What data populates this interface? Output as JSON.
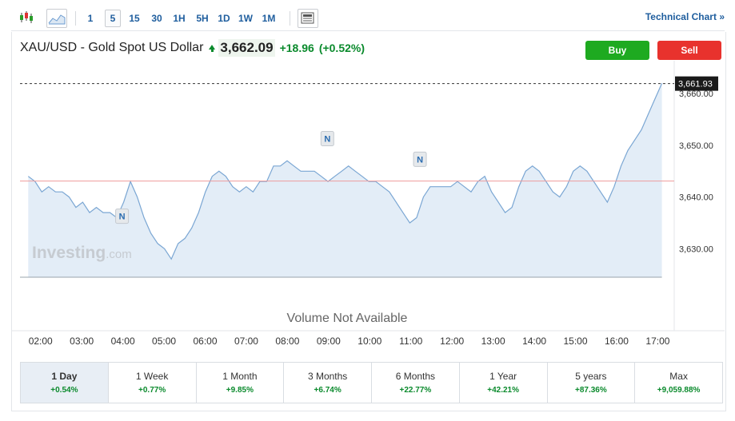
{
  "toolbar": {
    "intervals": [
      "1",
      "5",
      "15",
      "30",
      "1H",
      "5H",
      "1D",
      "1W",
      "1M"
    ],
    "active_interval": "5",
    "technical_chart_label": "Technical Chart",
    "technical_chart_suffix": "»"
  },
  "header": {
    "title": "XAU/USD - Gold Spot US Dollar",
    "price": "3,662.09",
    "change": "+18.96",
    "change_pct": "(+0.52%)",
    "up_color": "#0a8a2c"
  },
  "actions": {
    "buy_label": "Buy",
    "sell_label": "Sell",
    "buy_color": "#1eaa20",
    "sell_color": "#e8322d"
  },
  "chart_data": {
    "type": "area",
    "x_ticks": [
      "02:00",
      "03:00",
      "04:00",
      "05:00",
      "06:00",
      "07:00",
      "08:00",
      "09:00",
      "10:00",
      "11:00",
      "12:00",
      "13:00",
      "14:00",
      "15:00",
      "16:00",
      "17:00"
    ],
    "x_start": 1.7,
    "x_end": 17.1,
    "xlim": [
      1.5,
      17.4
    ],
    "y_ticks": [
      "3,630.00",
      "3,640.00",
      "3,650.00",
      "3,660.00"
    ],
    "ylim": [
      3624.5,
      3664.5
    ],
    "y_fill_floor": 3624.5,
    "reference_line": 3643.1,
    "last_price": 3661.93,
    "last_price_label": "3,661.93",
    "values": [
      3644,
      3643,
      3641,
      3642,
      3641,
      3641,
      3640,
      3638,
      3639,
      3637,
      3638,
      3637,
      3637,
      3636,
      3639,
      3643,
      3640,
      3636,
      3633,
      3631,
      3630,
      3628,
      3631,
      3632,
      3634,
      3637,
      3641,
      3644,
      3645,
      3644,
      3642,
      3641,
      3642,
      3641,
      3643,
      3643,
      3646,
      3646,
      3647,
      3646,
      3645,
      3645,
      3645,
      3644,
      3643,
      3644,
      3645,
      3646,
      3645,
      3644,
      3643,
      3643,
      3642,
      3641,
      3639,
      3637,
      3635,
      3636,
      3640,
      3642,
      3642,
      3642,
      3642,
      3643,
      3642,
      3641,
      3643,
      3644,
      3641,
      3639,
      3637,
      3638,
      3642,
      3645,
      3646,
      3645,
      3643,
      3641,
      3640,
      3642,
      3645,
      3646,
      3645,
      3643,
      3641,
      3639,
      3642,
      3646,
      3649,
      3651,
      3653,
      3656,
      3659,
      3662
    ],
    "news_markers": [
      {
        "label": "N",
        "x": 3.98,
        "y": 3636.3
      },
      {
        "label": "N",
        "x": 8.97,
        "y": 3651.3
      },
      {
        "label": "N",
        "x": 11.22,
        "y": 3647.3
      }
    ],
    "volume_label": "Volume Not Available",
    "watermark": {
      "brand": "Investing",
      "suffix": ".com"
    },
    "line_color": "#7aa6d3",
    "fill_color": "#e3edf7"
  },
  "ranges": [
    {
      "label": "1 Day",
      "value": "+0.54%",
      "active": true
    },
    {
      "label": "1 Week",
      "value": "+0.77%"
    },
    {
      "label": "1 Month",
      "value": "+9.85%"
    },
    {
      "label": "3 Months",
      "value": "+6.74%"
    },
    {
      "label": "6 Months",
      "value": "+22.77%"
    },
    {
      "label": "1 Year",
      "value": "+42.21%"
    },
    {
      "label": "5 years",
      "value": "+87.36%"
    },
    {
      "label": "Max",
      "value": "+9,059.88%"
    }
  ]
}
